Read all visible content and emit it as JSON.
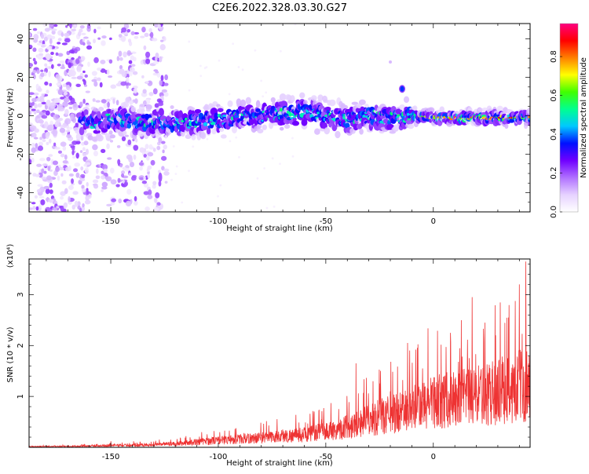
{
  "title": "C2E6.2022.328.03.30.G27",
  "chart_data": [
    {
      "type": "heatmap",
      "xlabel": "Height of straight line (km)",
      "ylabel": "Frequency (Hz)",
      "xlim": [
        -188,
        45
      ],
      "ylim": [
        -50,
        48
      ],
      "xticks": [
        -150,
        -100,
        -50,
        0
      ],
      "yticks": [
        -40,
        -20,
        0,
        20,
        40
      ],
      "colorbar": {
        "label": "Normalized spectral amplitude",
        "range": [
          0,
          0.97
        ],
        "ticks": [
          0.0,
          0.2,
          0.4,
          0.6,
          0.8
        ],
        "colormap": [
          "#ffffff",
          "#e6d2ff",
          "#b070ff",
          "#7000ff",
          "#0010ff",
          "#00c8ff",
          "#00ff90",
          "#40ff00",
          "#ffff00",
          "#ff8000",
          "#ff0000",
          "#ff0080"
        ]
      },
      "ridge": {
        "description_points": [
          [
            -188,
            0
          ],
          [
            -160,
            -4
          ],
          [
            -150,
            -2
          ],
          [
            -120,
            -4
          ],
          [
            -100,
            -2
          ],
          [
            -80,
            0
          ],
          [
            -60,
            2
          ],
          [
            -40,
            -2
          ],
          [
            -30,
            0
          ],
          [
            -20,
            -1
          ],
          [
            -15,
            12
          ],
          [
            -10,
            0
          ],
          [
            0,
            -1
          ],
          [
            20,
            -1
          ],
          [
            45,
            -1
          ]
        ]
      }
    },
    {
      "type": "line",
      "xlabel": "Height of straight line (km)",
      "ylabel": "SNR (10 * v/v)",
      "y_multiplier": "(x10⁴)",
      "xlim": [
        -188,
        45
      ],
      "ylim": [
        0,
        3.7
      ],
      "xticks": [
        -150,
        -100,
        -50,
        0
      ],
      "yticks": [
        1,
        2,
        3
      ],
      "color": "#ee3333",
      "envelope": [
        [
          -188,
          0.02
        ],
        [
          -160,
          0.04
        ],
        [
          -150,
          0.06
        ],
        [
          -130,
          0.08
        ],
        [
          -115,
          0.14
        ],
        [
          -100,
          0.22
        ],
        [
          -80,
          0.3
        ],
        [
          -60,
          0.4
        ],
        [
          -45,
          0.55
        ],
        [
          -35,
          0.75
        ],
        [
          -25,
          0.95
        ],
        [
          -18,
          1.05
        ],
        [
          -10,
          1.2
        ],
        [
          -5,
          1.3
        ],
        [
          0,
          1.45
        ],
        [
          10,
          1.5
        ],
        [
          20,
          1.6
        ],
        [
          30,
          1.75
        ],
        [
          38,
          1.9
        ],
        [
          45,
          2.0
        ]
      ],
      "peaks": [
        [
          -150,
          0.12
        ],
        [
          -115,
          0.22
        ],
        [
          -102,
          0.32
        ],
        [
          -88,
          0.28
        ],
        [
          -70,
          0.35
        ],
        [
          -52,
          0.55
        ],
        [
          -36,
          1.65
        ],
        [
          -28,
          1.3
        ],
        [
          -20,
          1.1
        ],
        [
          -12,
          2.05
        ],
        [
          -5,
          1.55
        ],
        [
          8,
          2.25
        ],
        [
          18,
          2.95
        ],
        [
          24,
          2.45
        ],
        [
          29,
          2.2
        ],
        [
          35,
          2.55
        ],
        [
          40,
          3.2
        ],
        [
          43,
          3.65
        ]
      ]
    }
  ]
}
